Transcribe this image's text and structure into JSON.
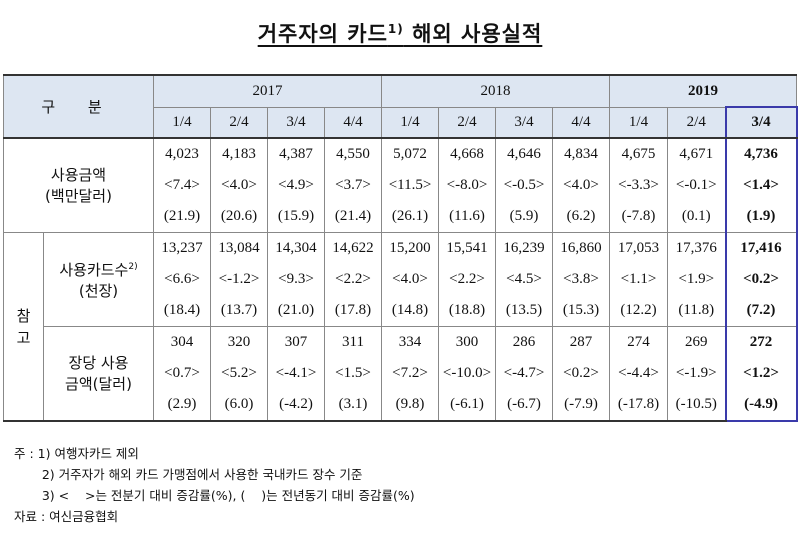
{
  "title": {
    "text": "거주자의 카드",
    "sup": "1)",
    "rest": " 해외 사용실적"
  },
  "header": {
    "gubun": "구 분",
    "years": [
      "2017",
      "2018",
      "2019"
    ],
    "quarters": [
      "1/4",
      "2/4",
      "3/4",
      "4/4",
      "1/4",
      "2/4",
      "3/4",
      "4/4",
      "1/4",
      "2/4",
      "3/4"
    ]
  },
  "sections": {
    "amount": {
      "label1": "사용금액",
      "label2": "(백만달러)"
    },
    "side": [
      "참",
      "고"
    ],
    "cards": {
      "label1": "사용카드수",
      "sup": "2)",
      "label2": "(천장)"
    },
    "per": {
      "label1": "장당 사용",
      "label2": "금액(달러)"
    }
  },
  "rows": {
    "amount_val": [
      "4,023",
      "4,183",
      "4,387",
      "4,550",
      "5,072",
      "4,668",
      "4,646",
      "4,834",
      "4,675",
      "4,671",
      "4,736"
    ],
    "amount_qoq": [
      "<7.4>",
      "<4.0>",
      "<4.9>",
      "<3.7>",
      "<11.5>",
      "<-8.0>",
      "<-0.5>",
      "<4.0>",
      "<-3.3>",
      "<-0.1>",
      "<1.4>"
    ],
    "amount_yoy": [
      "(21.9)",
      "(20.6)",
      "(15.9)",
      "(21.4)",
      "(26.1)",
      "(11.6)",
      "(5.9)",
      "(6.2)",
      "(-7.8)",
      "(0.1)",
      "(1.9)"
    ],
    "cards_val": [
      "13,237",
      "13,084",
      "14,304",
      "14,622",
      "15,200",
      "15,541",
      "16,239",
      "16,860",
      "17,053",
      "17,376",
      "17,416"
    ],
    "cards_qoq": [
      "<6.6>",
      "<-1.2>",
      "<9.3>",
      "<2.2>",
      "<4.0>",
      "<2.2>",
      "<4.5>",
      "<3.8>",
      "<1.1>",
      "<1.9>",
      "<0.2>"
    ],
    "cards_yoy": [
      "(18.4)",
      "(13.7)",
      "(21.0)",
      "(17.8)",
      "(14.8)",
      "(18.8)",
      "(13.5)",
      "(15.3)",
      "(12.2)",
      "(11.8)",
      "(7.2)"
    ],
    "per_val": [
      "304",
      "320",
      "307",
      "311",
      "334",
      "300",
      "286",
      "287",
      "274",
      "269",
      "272"
    ],
    "per_qoq": [
      "<0.7>",
      "<5.2>",
      "<-4.1>",
      "<1.5>",
      "<7.2>",
      "<-10.0>",
      "<-4.7>",
      "<0.2>",
      "<-4.4>",
      "<-1.9>",
      "<1.2>"
    ],
    "per_yoy": [
      "(2.9)",
      "(6.0)",
      "(-4.2)",
      "(3.1)",
      "(9.8)",
      "(-6.1)",
      "(-6.7)",
      "(-7.9)",
      "(-17.8)",
      "(-10.5)",
      "(-4.9)"
    ]
  },
  "notes": [
    "주 : 1) 여행자카드 제외",
    "       2) 거주자가 해외 카드 가맹점에서 사용한 국내카드 장수 기준",
    "       3) <    >는 전분기 대비 증감률(%), (    )는 전년동기 대비 증감률(%)",
    "자료 : 여신금융협회"
  ]
}
